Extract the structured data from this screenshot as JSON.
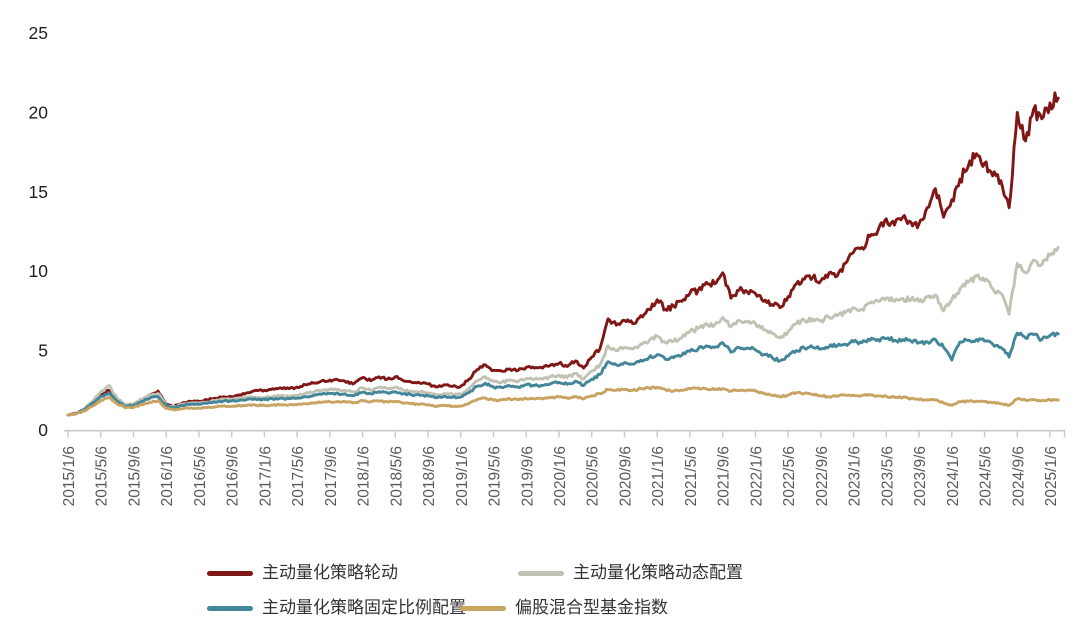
{
  "chart_data": {
    "type": "line",
    "title": "",
    "xlabel": "",
    "ylabel": "",
    "ylim": [
      0,
      25
    ],
    "y_ticks": [
      0,
      5,
      10,
      15,
      20,
      25
    ],
    "grid": false,
    "legend_position": "bottom",
    "x_tick_labels": [
      "2015/1/6",
      "2015/5/6",
      "2015/9/6",
      "2016/1/6",
      "2016/5/6",
      "2016/9/6",
      "2017/1/6",
      "2017/5/6",
      "2017/9/6",
      "2018/1/6",
      "2018/5/6",
      "2018/9/6",
      "2019/1/6",
      "2019/5/6",
      "2019/9/6",
      "2020/1/6",
      "2020/5/6",
      "2020/9/6",
      "2021/1/6",
      "2021/5/6",
      "2021/9/6",
      "2022/1/6",
      "2022/5/6",
      "2022/9/6",
      "2023/1/6",
      "2023/5/6",
      "2023/9/6",
      "2024/1/6",
      "2024/5/6",
      "2024/9/6",
      "2025/1/6"
    ],
    "x_start": "2015/1",
    "x_end": "2025/2",
    "x_step": "month",
    "axis_color": "#c9c9c9",
    "x_tick_label_color": "#595959",
    "y_tick_label_color": "#1f1f1f",
    "series": [
      {
        "id": "rotation",
        "name": "主动量化策略轮动",
        "color": "#7f1716",
        "values": [
          0.95,
          1.05,
          1.3,
          1.7,
          2.2,
          2.5,
          1.9,
          1.55,
          1.6,
          1.9,
          2.2,
          2.45,
          1.6,
          1.5,
          1.7,
          1.8,
          1.8,
          1.9,
          2.0,
          2.1,
          2.1,
          2.2,
          2.35,
          2.5,
          2.5,
          2.6,
          2.65,
          2.6,
          2.7,
          2.85,
          2.95,
          3.1,
          3.15,
          3.15,
          3.0,
          2.95,
          3.3,
          3.1,
          3.35,
          3.2,
          3.35,
          3.1,
          3.0,
          2.95,
          2.9,
          2.7,
          2.85,
          2.75,
          2.75,
          3.2,
          3.8,
          4.1,
          3.75,
          3.7,
          3.85,
          3.75,
          3.95,
          3.9,
          3.9,
          4.1,
          4.2,
          4.0,
          4.35,
          3.9,
          4.6,
          5.1,
          7.0,
          6.6,
          6.9,
          6.7,
          7.2,
          7.6,
          8.2,
          7.6,
          7.8,
          8.1,
          8.6,
          8.8,
          9.3,
          9.2,
          9.9,
          8.3,
          8.8,
          8.7,
          8.6,
          8.1,
          7.9,
          7.7,
          8.4,
          9.2,
          9.5,
          9.6,
          9.4,
          9.9,
          9.7,
          10.5,
          11.2,
          11.5,
          12.2,
          12.6,
          13.3,
          12.9,
          13.4,
          13.1,
          13.0,
          14.0,
          15.2,
          13.4,
          14.5,
          15.8,
          16.6,
          17.4,
          16.8,
          16.0,
          15.7,
          14.0,
          20.0,
          18.2,
          20.2,
          19.6,
          20.6,
          20.9
        ]
      },
      {
        "id": "dynamic",
        "name": "主动量化策略动态配置",
        "color": "#c1c2b4",
        "values": [
          0.95,
          1.05,
          1.35,
          1.8,
          2.4,
          2.8,
          2.0,
          1.6,
          1.65,
          1.95,
          2.2,
          2.3,
          1.55,
          1.45,
          1.6,
          1.7,
          1.7,
          1.75,
          1.85,
          1.95,
          1.95,
          2.0,
          2.1,
          2.05,
          2.05,
          2.1,
          2.15,
          2.1,
          2.15,
          2.3,
          2.4,
          2.5,
          2.55,
          2.55,
          2.45,
          2.4,
          2.65,
          2.5,
          2.7,
          2.6,
          2.7,
          2.5,
          2.45,
          2.4,
          2.35,
          2.2,
          2.3,
          2.25,
          2.25,
          2.6,
          3.1,
          3.35,
          3.05,
          3.0,
          3.15,
          3.05,
          3.25,
          3.2,
          3.2,
          3.35,
          3.45,
          3.3,
          3.55,
          3.2,
          3.7,
          4.1,
          5.3,
          5.0,
          5.2,
          5.1,
          5.4,
          5.6,
          5.9,
          5.5,
          5.6,
          5.8,
          6.2,
          6.4,
          6.7,
          6.6,
          7.1,
          6.5,
          6.9,
          6.8,
          6.7,
          6.3,
          6.1,
          5.8,
          6.2,
          6.7,
          6.9,
          7.0,
          6.9,
          7.1,
          7.2,
          7.4,
          7.7,
          7.6,
          8.0,
          8.1,
          8.3,
          8.1,
          8.3,
          8.2,
          8.1,
          8.4,
          8.5,
          7.5,
          8.2,
          8.9,
          9.3,
          9.7,
          9.4,
          8.9,
          8.6,
          7.3,
          10.5,
          9.9,
          10.7,
          10.4,
          11.0,
          11.5
        ]
      },
      {
        "id": "fixed-ratio",
        "name": "主动量化策略固定比例配置",
        "color": "#43869a",
        "values": [
          0.95,
          1.05,
          1.3,
          1.7,
          2.1,
          2.35,
          1.8,
          1.5,
          1.55,
          1.8,
          2.0,
          2.1,
          1.5,
          1.4,
          1.55,
          1.62,
          1.62,
          1.68,
          1.75,
          1.82,
          1.82,
          1.88,
          1.95,
          1.92,
          1.92,
          1.96,
          2.0,
          1.97,
          2.0,
          2.1,
          2.17,
          2.25,
          2.3,
          2.3,
          2.22,
          2.18,
          2.38,
          2.28,
          2.42,
          2.35,
          2.42,
          2.28,
          2.22,
          2.18,
          2.15,
          2.02,
          2.12,
          2.07,
          2.07,
          2.35,
          2.75,
          2.95,
          2.7,
          2.67,
          2.77,
          2.7,
          2.85,
          2.8,
          2.8,
          2.92,
          3.0,
          2.88,
          3.08,
          2.8,
          3.2,
          3.5,
          4.3,
          4.1,
          4.25,
          4.15,
          4.4,
          4.55,
          4.75,
          4.45,
          4.55,
          4.7,
          4.95,
          5.1,
          5.3,
          5.2,
          5.5,
          4.9,
          5.2,
          5.15,
          5.05,
          4.75,
          4.6,
          4.35,
          4.65,
          5.0,
          5.15,
          5.2,
          5.1,
          5.25,
          5.3,
          5.4,
          5.55,
          5.5,
          5.65,
          5.7,
          5.75,
          5.65,
          5.7,
          5.6,
          5.5,
          5.55,
          5.7,
          5.2,
          4.4,
          5.55,
          5.65,
          5.7,
          5.6,
          5.4,
          5.2,
          4.6,
          6.1,
          5.8,
          6.0,
          5.7,
          5.95,
          6.05
        ]
      },
      {
        "id": "fund-index",
        "name": "偏股混合型基金指数",
        "color": "#c8a361",
        "values": [
          0.95,
          1.02,
          1.2,
          1.5,
          1.85,
          2.05,
          1.65,
          1.4,
          1.42,
          1.6,
          1.75,
          1.85,
          1.35,
          1.25,
          1.35,
          1.4,
          1.38,
          1.42,
          1.47,
          1.52,
          1.5,
          1.53,
          1.58,
          1.55,
          1.55,
          1.57,
          1.6,
          1.58,
          1.6,
          1.65,
          1.7,
          1.75,
          1.78,
          1.8,
          1.75,
          1.73,
          1.85,
          1.78,
          1.82,
          1.78,
          1.8,
          1.7,
          1.65,
          1.62,
          1.6,
          1.48,
          1.55,
          1.5,
          1.5,
          1.68,
          1.92,
          2.02,
          1.88,
          1.9,
          1.95,
          1.9,
          1.98,
          1.95,
          1.95,
          2.05,
          2.08,
          2.0,
          2.1,
          1.95,
          2.15,
          2.3,
          2.55,
          2.5,
          2.55,
          2.5,
          2.6,
          2.65,
          2.7,
          2.55,
          2.45,
          2.5,
          2.6,
          2.65,
          2.6,
          2.55,
          2.6,
          2.45,
          2.5,
          2.52,
          2.45,
          2.3,
          2.2,
          2.1,
          2.2,
          2.35,
          2.3,
          2.25,
          2.15,
          2.1,
          2.15,
          2.2,
          2.2,
          2.18,
          2.2,
          2.15,
          2.12,
          2.05,
          2.05,
          1.98,
          1.92,
          1.9,
          1.88,
          1.7,
          1.55,
          1.78,
          1.8,
          1.82,
          1.78,
          1.72,
          1.65,
          1.55,
          1.95,
          1.88,
          1.92,
          1.85,
          1.9,
          1.88
        ]
      }
    ]
  },
  "legend": {
    "rows": 2,
    "items_order": [
      "rotation",
      "dynamic",
      "fixed-ratio",
      "fund-index"
    ]
  }
}
